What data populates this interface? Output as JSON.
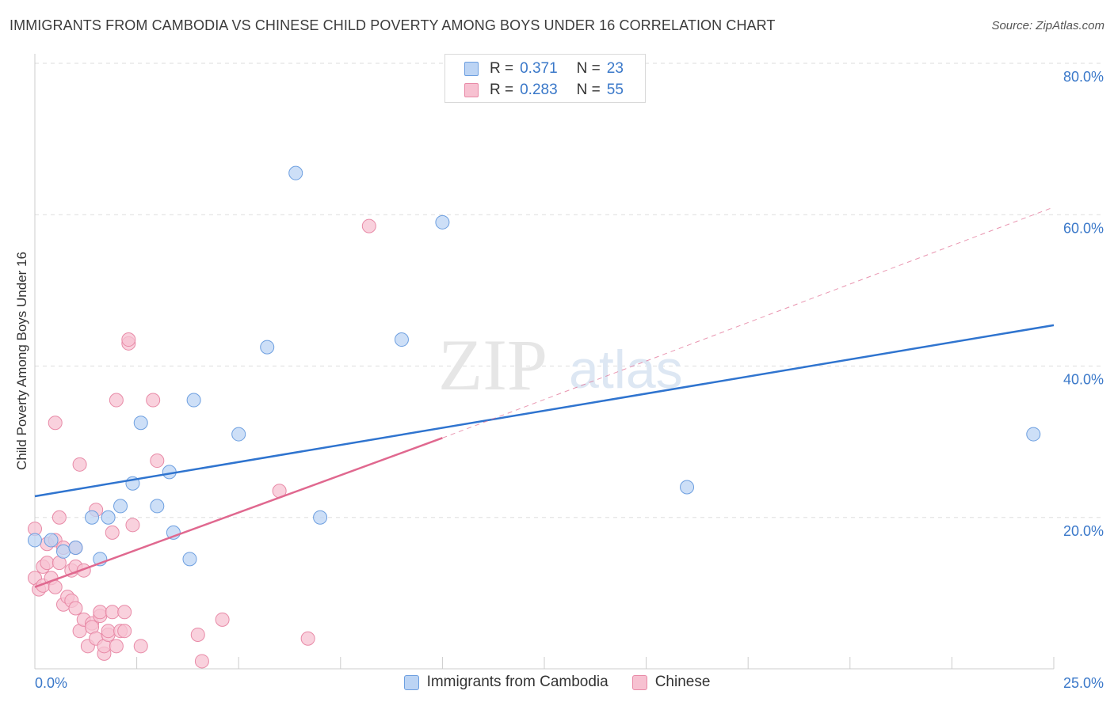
{
  "title": "IMMIGRANTS FROM CAMBODIA VS CHINESE CHILD POVERTY AMONG BOYS UNDER 16 CORRELATION CHART",
  "source": "Source: ZipAtlas.com",
  "watermark": {
    "zip": "ZIP",
    "atlas": "atlas"
  },
  "legend_top": [
    {
      "r_label": "R =",
      "r_value": "0.371",
      "n_label": "N =",
      "n_value": "23"
    },
    {
      "r_label": "R =",
      "r_value": "0.283",
      "n_label": "N =",
      "n_value": "55"
    }
  ],
  "legend_bottom": [
    {
      "label": "Immigrants from Cambodia"
    },
    {
      "label": "Chinese"
    }
  ],
  "colors": {
    "cambodia_fill": "#bcd4f4",
    "cambodia_stroke": "#6d9fe0",
    "cambodia_line": "#2f74cf",
    "chinese_fill": "#f7c1d1",
    "chinese_stroke": "#e88aa7",
    "chinese_line": "#e0688f",
    "tick_text": "#3a78c9",
    "grid": "#dddddd"
  },
  "chart_data": {
    "type": "scatter",
    "title": "IMMIGRANTS FROM CAMBODIA VS CHINESE CHILD POVERTY AMONG BOYS UNDER 16 CORRELATION CHART",
    "xlabel": "",
    "ylabel": "Child Poverty Among Boys Under 16",
    "xlim": [
      0,
      25
    ],
    "ylim": [
      0,
      80
    ],
    "x_tick_labels": [
      "0.0%",
      "25.0%"
    ],
    "y_ticks": [
      20,
      40,
      60,
      80
    ],
    "y_tick_labels": [
      "20.0%",
      "40.0%",
      "60.0%",
      "80.0%"
    ],
    "grid": true,
    "legend_position": "top-center",
    "series": [
      {
        "name": "Immigrants from Cambodia",
        "r": 0.371,
        "n": 23,
        "trend": {
          "x": [
            0,
            25
          ],
          "y": [
            22.8,
            45.4
          ],
          "dashed_extension": false
        },
        "points": [
          [
            0.0,
            17.0
          ],
          [
            0.4,
            17.0
          ],
          [
            0.7,
            15.5
          ],
          [
            1.0,
            16.0
          ],
          [
            1.4,
            20.0
          ],
          [
            1.6,
            14.5
          ],
          [
            1.8,
            20.0
          ],
          [
            2.1,
            21.5
          ],
          [
            2.4,
            24.5
          ],
          [
            2.6,
            32.5
          ],
          [
            3.0,
            21.5
          ],
          [
            3.3,
            26.0
          ],
          [
            3.4,
            18.0
          ],
          [
            3.8,
            14.5
          ],
          [
            3.9,
            35.5
          ],
          [
            5.0,
            31.0
          ],
          [
            5.7,
            42.5
          ],
          [
            6.4,
            65.5
          ],
          [
            7.0,
            20.0
          ],
          [
            9.0,
            43.5
          ],
          [
            10.0,
            59.0
          ],
          [
            16.0,
            24.0
          ],
          [
            24.5,
            31.0
          ]
        ]
      },
      {
        "name": "Chinese",
        "r": 0.283,
        "n": 55,
        "trend": {
          "x": [
            0,
            10
          ],
          "y": [
            10.8,
            30.5
          ],
          "extension": {
            "x": [
              10,
              25
            ],
            "y": [
              30.5,
              61.0
            ]
          }
        },
        "points": [
          [
            0.0,
            18.5
          ],
          [
            0.0,
            12.0
          ],
          [
            0.1,
            10.5
          ],
          [
            0.2,
            11.0
          ],
          [
            0.2,
            13.5
          ],
          [
            0.3,
            14.0
          ],
          [
            0.3,
            16.5
          ],
          [
            0.4,
            12.0
          ],
          [
            0.5,
            10.8
          ],
          [
            0.5,
            17.0
          ],
          [
            0.6,
            14.0
          ],
          [
            0.5,
            32.5
          ],
          [
            0.6,
            20.0
          ],
          [
            0.7,
            16.0
          ],
          [
            0.7,
            8.5
          ],
          [
            0.8,
            9.5
          ],
          [
            0.9,
            13.0
          ],
          [
            0.9,
            9.0
          ],
          [
            1.0,
            8.0
          ],
          [
            1.0,
            13.5
          ],
          [
            1.0,
            16.0
          ],
          [
            1.1,
            5.0
          ],
          [
            1.1,
            27.0
          ],
          [
            1.2,
            13.0
          ],
          [
            1.2,
            6.5
          ],
          [
            1.3,
            3.0
          ],
          [
            1.4,
            6.0
          ],
          [
            1.4,
            5.5
          ],
          [
            1.5,
            4.0
          ],
          [
            1.5,
            21.0
          ],
          [
            1.6,
            7.0
          ],
          [
            1.6,
            7.5
          ],
          [
            1.7,
            2.0
          ],
          [
            1.7,
            3.0
          ],
          [
            1.8,
            4.5
          ],
          [
            1.8,
            5.0
          ],
          [
            1.9,
            7.5
          ],
          [
            1.9,
            18.0
          ],
          [
            2.0,
            3.0
          ],
          [
            2.0,
            35.5
          ],
          [
            2.1,
            5.0
          ],
          [
            2.2,
            7.5
          ],
          [
            2.2,
            5.0
          ],
          [
            2.3,
            43.0
          ],
          [
            2.3,
            43.5
          ],
          [
            2.4,
            19.0
          ],
          [
            2.6,
            3.0
          ],
          [
            2.9,
            35.5
          ],
          [
            3.0,
            27.5
          ],
          [
            4.0,
            4.5
          ],
          [
            4.1,
            1.0
          ],
          [
            4.6,
            6.5
          ],
          [
            6.0,
            23.5
          ],
          [
            6.7,
            4.0
          ],
          [
            8.2,
            58.5
          ]
        ]
      }
    ]
  }
}
